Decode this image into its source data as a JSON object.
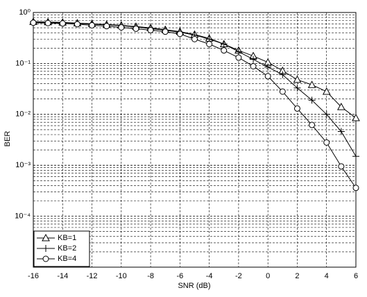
{
  "chart_data": {
    "type": "line",
    "xlabel": "SNR (dB)",
    "ylabel": "BER",
    "x": [
      -16,
      -15,
      -14,
      -13,
      -12,
      -11,
      -10,
      -9,
      -8,
      -7,
      -6,
      -5,
      -4,
      -3,
      -2,
      -1,
      0,
      1,
      2,
      3,
      4,
      5,
      6
    ],
    "series": [
      {
        "name": "KB=1",
        "color": "#000000",
        "marker": "triangle",
        "values": [
          0.66,
          0.65,
          0.64,
          0.62,
          0.6,
          0.58,
          0.56,
          0.53,
          0.5,
          0.46,
          0.42,
          0.37,
          0.31,
          0.24,
          0.18,
          0.14,
          0.105,
          0.072,
          0.048,
          0.038,
          0.028,
          0.014,
          0.0085
        ]
      },
      {
        "name": "KB=2",
        "color": "#000000",
        "marker": "plus",
        "values": [
          0.65,
          0.64,
          0.63,
          0.61,
          0.59,
          0.57,
          0.55,
          0.52,
          0.48,
          0.45,
          0.41,
          0.36,
          0.3,
          0.24,
          0.17,
          0.12,
          0.085,
          0.06,
          0.033,
          0.019,
          0.01,
          0.0046,
          0.0015
        ]
      },
      {
        "name": "KB=4",
        "color": "#000000",
        "marker": "circle",
        "values": [
          0.63,
          0.62,
          0.61,
          0.59,
          0.56,
          0.54,
          0.51,
          0.48,
          0.45,
          0.42,
          0.38,
          0.3,
          0.24,
          0.18,
          0.13,
          0.088,
          0.056,
          0.028,
          0.013,
          0.0062,
          0.0028,
          0.00095,
          0.00036
        ]
      }
    ],
    "xlim": [
      -16,
      6
    ],
    "xticks": [
      -16,
      -14,
      -12,
      -10,
      -8,
      -6,
      -4,
      -2,
      0,
      2,
      4,
      6
    ],
    "ylim": [
      1e-05,
      1
    ],
    "log_y": true,
    "yticks": [
      {
        "value": 1,
        "label": "10⁰"
      },
      {
        "value": 0.1,
        "label": "10⁻¹"
      },
      {
        "value": 0.01,
        "label": "10⁻²"
      },
      {
        "value": 0.001,
        "label": "10⁻³"
      },
      {
        "value": 0.0001,
        "label": "10⁻⁴"
      }
    ],
    "grid": true,
    "legend": "lower left"
  }
}
